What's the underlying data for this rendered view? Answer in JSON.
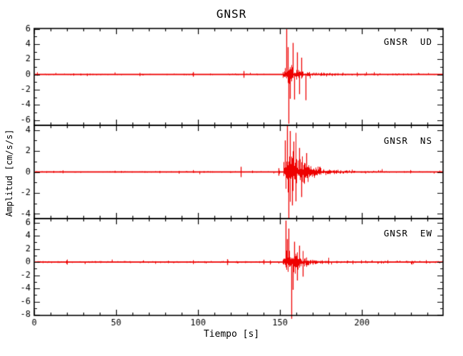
{
  "window": {
    "background": "#ffffff"
  },
  "chart_data": {
    "type": "line",
    "title": "GNSR",
    "xlabel": "Tiempo [s]",
    "ylabel": "Amplitud [cm/s/s]",
    "grid": false,
    "legend": null,
    "axis_color": "#000000",
    "line_color": "#ee0000",
    "x_range": [
      0,
      249.5
    ],
    "x_ticks": [
      0,
      50,
      100,
      150,
      200
    ],
    "x_minor_step": 10,
    "description": "Three stacked seismogram traces (vertical UD, north-south NS, east-west EW) of station GNSR; quiet noise until an event onset near t=152 s with sharp spikes and an exponentially decaying coda.",
    "panels": [
      {
        "label": "GNSR  UD",
        "component": "UD",
        "ylim": [
          -6.7,
          6.05
        ],
        "y_ticks": [
          -6,
          -4,
          -2,
          0,
          2,
          4,
          6
        ],
        "y_minor_step": 1,
        "event": {
          "onset": 151.5,
          "peak_t": 155.5,
          "tau": 5.5,
          "peak_env": 1.7,
          "coda0": 0.35,
          "coda_tau": 28,
          "noise": 0.07
        },
        "spikes": [
          [
            153.7,
            5.95
          ],
          [
            154.6,
            3.6
          ],
          [
            155.1,
            -6.5
          ],
          [
            156.0,
            -3.2
          ],
          [
            157.9,
            4.15
          ],
          [
            158.8,
            -3.3
          ],
          [
            160.3,
            2.9
          ],
          [
            161.9,
            -2.6
          ],
          [
            163.0,
            2.2
          ],
          [
            165.8,
            -3.4
          ]
        ],
        "pre_blips": [
          [
            128,
            0.45
          ],
          [
            97,
            0.3
          ]
        ]
      },
      {
        "label": "GNSR  NS",
        "component": "NS",
        "ylim": [
          -4.45,
          4.45
        ],
        "y_ticks": [
          -4,
          -2,
          0,
          2,
          4
        ],
        "y_minor_step": 1,
        "event": {
          "onset": 151.8,
          "peak_t": 157.0,
          "tau": 9.0,
          "peak_env": 2.3,
          "coda0": 0.45,
          "coda_tau": 26,
          "noise": 0.05
        },
        "spikes": [
          [
            153.2,
            3.0
          ],
          [
            154.3,
            4.4
          ],
          [
            155.2,
            -4.4
          ],
          [
            155.9,
            3.9
          ],
          [
            157.2,
            -3.2
          ],
          [
            158.3,
            2.9
          ],
          [
            159.6,
            -2.8
          ],
          [
            161.5,
            2.3
          ],
          [
            163.2,
            -2.4
          ],
          [
            166.0,
            1.8
          ]
        ],
        "pre_blips": [
          [
            126,
            0.5
          ],
          [
            149,
            0.35
          ]
        ]
      },
      {
        "label": "GNSR  EW",
        "component": "EW",
        "ylim": [
          -8.1,
          6.6
        ],
        "y_ticks": [
          -8,
          -6,
          -4,
          -2,
          0,
          2,
          4,
          6
        ],
        "y_minor_step": 1,
        "event": {
          "onset": 151.5,
          "peak_t": 157.0,
          "tau": 7.5,
          "peak_env": 1.9,
          "coda0": 0.45,
          "coda_tau": 22,
          "noise": 0.09
        },
        "spikes": [
          [
            153.6,
            6.3
          ],
          [
            154.4,
            3.5
          ],
          [
            155.3,
            5.1
          ],
          [
            156.7,
            -8.6
          ],
          [
            157.6,
            -4.2
          ],
          [
            158.7,
            3.1
          ],
          [
            160.2,
            -2.8
          ],
          [
            161.6,
            2.5
          ],
          [
            164.0,
            -2.2
          ]
        ],
        "pre_blips": [
          [
            118,
            0.45
          ],
          [
            140,
            0.35
          ]
        ]
      }
    ]
  }
}
